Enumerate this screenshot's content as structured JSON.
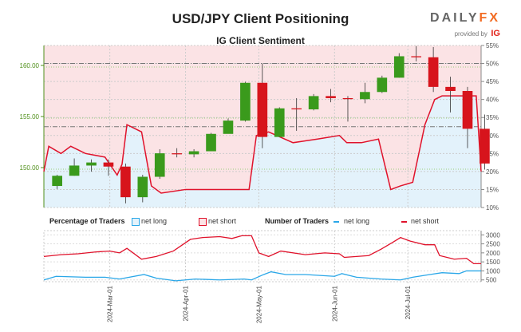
{
  "header": {
    "title": "USD/JPY Client Positioning",
    "subtitle": "IG Client Sentiment",
    "logo_text": "DAILYFX",
    "logo_provided": "provided by",
    "logo_ig": "IG"
  },
  "legend": {
    "pct_label": "Percentage of Traders",
    "pct_long": "net long",
    "pct_short": "net short",
    "num_label": "Number of Traders",
    "num_long": "net long",
    "num_short": "net short"
  },
  "colors": {
    "long": "#2aa7e8",
    "short": "#e0122b",
    "long_fill": "#e3f2fb",
    "short_fill": "#fbe3e5",
    "up": "#3a9a1c",
    "down": "#d7141c",
    "price_axis": "#4f8f1a"
  },
  "chart_data": [
    {
      "type": "candlestick+area",
      "title": "USD/JPY Client Positioning",
      "subtitle": "IG Client Sentiment",
      "left_axis": {
        "ticks": [
          "150.00",
          "155.00",
          "160.00"
        ],
        "range": [
          146,
          162
        ]
      },
      "right_axis": {
        "ticks": [
          "10%",
          "15%",
          "20%",
          "25%",
          "30%",
          "35%",
          "40%",
          "45%",
          "50%",
          "55%"
        ],
        "range": [
          10,
          55
        ]
      },
      "reference_lines": [
        160.2,
        154.0
      ],
      "candles_weekly": [
        [
          "2024-02-05",
          148.2,
          149.3,
          147.9,
          149.2
        ],
        [
          "2024-02-12",
          149.2,
          150.9,
          149.2,
          150.2
        ],
        [
          "2024-02-19",
          150.2,
          150.8,
          149.6,
          150.5
        ],
        [
          "2024-02-26",
          150.5,
          150.8,
          149.2,
          150.1
        ],
        [
          "2024-03-04",
          150.1,
          150.4,
          146.5,
          147.1
        ],
        [
          "2024-03-11",
          147.1,
          149.3,
          146.6,
          149.1
        ],
        [
          "2024-03-18",
          149.1,
          151.8,
          148.9,
          151.4
        ],
        [
          "2024-03-25",
          151.4,
          151.9,
          151.0,
          151.3
        ],
        [
          "2024-04-01",
          151.3,
          151.8,
          151.0,
          151.6
        ],
        [
          "2024-04-08",
          151.6,
          153.4,
          151.6,
          153.3
        ],
        [
          "2024-04-15",
          153.3,
          154.8,
          153.6,
          154.6
        ],
        [
          "2024-04-22",
          154.6,
          158.4,
          154.5,
          158.3
        ],
        [
          "2024-04-29",
          158.3,
          160.2,
          151.9,
          153.0
        ],
        [
          "2024-05-06",
          153.0,
          155.9,
          153.0,
          155.8
        ],
        [
          "2024-05-13",
          155.8,
          156.8,
          153.6,
          155.7
        ],
        [
          "2024-05-20",
          155.7,
          157.2,
          155.6,
          157.0
        ],
        [
          "2024-05-27",
          157.0,
          157.7,
          156.4,
          156.8
        ],
        [
          "2024-06-03",
          156.8,
          157.0,
          154.5,
          156.7
        ],
        [
          "2024-06-10",
          156.7,
          158.3,
          156.3,
          157.4
        ],
        [
          "2024-06-17",
          157.4,
          159.0,
          157.3,
          158.8
        ],
        [
          "2024-06-24",
          158.8,
          161.2,
          158.8,
          160.9
        ],
        [
          "2024-07-01",
          160.9,
          161.9,
          160.4,
          160.8
        ],
        [
          "2024-07-08",
          160.8,
          161.8,
          157.4,
          157.9
        ],
        [
          "2024-07-15",
          157.9,
          158.9,
          155.4,
          157.5
        ],
        [
          "2024-07-22",
          157.5,
          157.9,
          151.9,
          153.8
        ],
        [
          "2024-07-29",
          153.8,
          155.2,
          149.8,
          150.4
        ]
      ],
      "net_long_pct": [
        [
          "2024-02-03",
          20
        ],
        [
          "2024-02-05",
          27
        ],
        [
          "2024-02-10",
          25
        ],
        [
          "2024-02-14",
          27
        ],
        [
          "2024-02-20",
          25
        ],
        [
          "2024-02-28",
          24
        ],
        [
          "2024-03-04",
          19
        ],
        [
          "2024-03-06",
          22
        ],
        [
          "2024-03-08",
          33
        ],
        [
          "2024-03-14",
          31
        ],
        [
          "2024-03-18",
          16
        ],
        [
          "2024-03-22",
          14
        ],
        [
          "2024-04-01",
          15
        ],
        [
          "2024-04-10",
          15
        ],
        [
          "2024-04-20",
          15
        ],
        [
          "2024-04-27",
          15
        ],
        [
          "2024-04-30",
          30
        ],
        [
          "2024-05-05",
          31
        ],
        [
          "2024-05-15",
          28
        ],
        [
          "2024-05-25",
          29
        ],
        [
          "2024-06-03",
          30
        ],
        [
          "2024-06-06",
          28
        ],
        [
          "2024-06-12",
          28
        ],
        [
          "2024-06-19",
          29
        ],
        [
          "2024-06-24",
          15
        ],
        [
          "2024-06-28",
          16
        ],
        [
          "2024-07-03",
          17
        ],
        [
          "2024-07-08",
          33
        ],
        [
          "2024-07-12",
          40
        ],
        [
          "2024-07-15",
          41
        ],
        [
          "2024-07-29",
          41
        ],
        [
          "2024-07-31",
          20
        ]
      ]
    },
    {
      "type": "line",
      "right_axis": {
        "ticks": [
          "500",
          "1000",
          "1500",
          "2000",
          "2500",
          "3000"
        ],
        "range": [
          400,
          3100
        ]
      },
      "x_ticks": [
        "2024-Mar-01",
        "2024-Apr-01",
        "2024-May-01",
        "2024-Jun-01",
        "2024-Jul-01"
      ],
      "series": [
        {
          "name": "net short",
          "values": [
            [
              "2024-02-03",
              1800
            ],
            [
              "2024-02-10",
              1900
            ],
            [
              "2024-02-17",
              1950
            ],
            [
              "2024-02-24",
              2050
            ],
            [
              "2024-03-01",
              2100
            ],
            [
              "2024-03-05",
              2000
            ],
            [
              "2024-03-08",
              2250
            ],
            [
              "2024-03-14",
              1650
            ],
            [
              "2024-03-20",
              1800
            ],
            [
              "2024-03-27",
              2100
            ],
            [
              "2024-04-03",
              2750
            ],
            [
              "2024-04-08",
              2850
            ],
            [
              "2024-04-15",
              2900
            ],
            [
              "2024-04-20",
              2800
            ],
            [
              "2024-04-24",
              2950
            ],
            [
              "2024-04-28",
              2950
            ],
            [
              "2024-05-01",
              2000
            ],
            [
              "2024-05-05",
              1800
            ],
            [
              "2024-05-10",
              2100
            ],
            [
              "2024-05-20",
              1900
            ],
            [
              "2024-05-28",
              2000
            ],
            [
              "2024-06-03",
              1950
            ],
            [
              "2024-06-05",
              1750
            ],
            [
              "2024-06-15",
              1850
            ],
            [
              "2024-06-20",
              2200
            ],
            [
              "2024-06-25",
              2600
            ],
            [
              "2024-06-28",
              2850
            ],
            [
              "2024-07-02",
              2650
            ],
            [
              "2024-07-08",
              2450
            ],
            [
              "2024-07-12",
              2450
            ],
            [
              "2024-07-14",
              1850
            ],
            [
              "2024-07-20",
              1650
            ],
            [
              "2024-07-25",
              1700
            ],
            [
              "2024-07-28",
              1400
            ],
            [
              "2024-07-31",
              1400
            ]
          ]
        },
        {
          "name": "net long",
          "values": [
            [
              "2024-02-03",
              500
            ],
            [
              "2024-02-08",
              700
            ],
            [
              "2024-02-20",
              650
            ],
            [
              "2024-02-28",
              650
            ],
            [
              "2024-03-05",
              550
            ],
            [
              "2024-03-15",
              800
            ],
            [
              "2024-03-20",
              600
            ],
            [
              "2024-03-28",
              450
            ],
            [
              "2024-04-05",
              550
            ],
            [
              "2024-04-15",
              500
            ],
            [
              "2024-04-25",
              550
            ],
            [
              "2024-04-28",
              500
            ],
            [
              "2024-05-03",
              800
            ],
            [
              "2024-05-06",
              950
            ],
            [
              "2024-05-12",
              800
            ],
            [
              "2024-05-20",
              800
            ],
            [
              "2024-06-01",
              700
            ],
            [
              "2024-06-04",
              850
            ],
            [
              "2024-06-10",
              650
            ],
            [
              "2024-06-20",
              550
            ],
            [
              "2024-06-28",
              500
            ],
            [
              "2024-07-03",
              650
            ],
            [
              "2024-07-10",
              800
            ],
            [
              "2024-07-15",
              900
            ],
            [
              "2024-07-22",
              850
            ],
            [
              "2024-07-25",
              1000
            ],
            [
              "2024-07-31",
              1000
            ]
          ]
        }
      ]
    }
  ]
}
